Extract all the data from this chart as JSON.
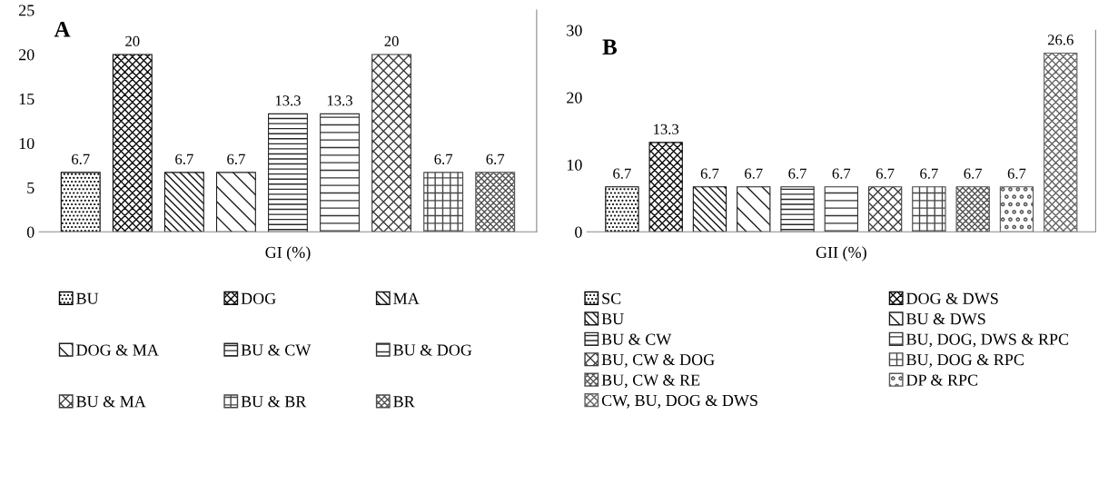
{
  "chart_data": [
    {
      "type": "bar",
      "xlabel": "GI (%)",
      "annotations": [
        "A"
      ],
      "categories": [
        null,
        null,
        null,
        null,
        null,
        null,
        null,
        null,
        null
      ],
      "ylim": [
        0,
        25
      ],
      "yticks": [
        0,
        5,
        10,
        15,
        20,
        25
      ],
      "stacked": true,
      "data_labels": true,
      "legend": "bottom",
      "grid": false,
      "series": [
        {
          "name": "BU",
          "color": "#000000",
          "values": [
            6.7,
            null,
            null,
            null,
            null,
            null,
            null,
            null,
            null
          ]
        },
        {
          "name": "DOG",
          "color": "#0a0a0a",
          "values": [
            null,
            20,
            null,
            null,
            null,
            null,
            null,
            null,
            null
          ]
        },
        {
          "name": "MA",
          "color": "#141414",
          "values": [
            null,
            null,
            6.7,
            null,
            null,
            null,
            null,
            null,
            null
          ]
        },
        {
          "name": "DOG & MA",
          "color": "#1e1e1e",
          "values": [
            null,
            null,
            null,
            6.7,
            null,
            null,
            null,
            null,
            null
          ]
        },
        {
          "name": "BU & CW",
          "color": "#282828",
          "values": [
            null,
            null,
            null,
            null,
            13.3,
            null,
            null,
            null,
            null
          ]
        },
        {
          "name": "BU & DOG",
          "color": "#323232",
          "values": [
            null,
            null,
            null,
            null,
            null,
            13.3,
            null,
            null,
            null
          ]
        },
        {
          "name": "BU & MA",
          "color": "#3c3c3c",
          "values": [
            null,
            null,
            null,
            null,
            null,
            null,
            20,
            null,
            null
          ]
        },
        {
          "name": "BU & BR",
          "color": "#464646",
          "values": [
            null,
            null,
            null,
            null,
            null,
            null,
            null,
            6.7,
            null
          ]
        },
        {
          "name": "BR",
          "color": "#505050",
          "values": [
            null,
            null,
            null,
            null,
            null,
            null,
            null,
            null,
            6.7
          ]
        }
      ]
    },
    {
      "type": "bar",
      "xlabel": "GII (%)",
      "annotations": [
        "B"
      ],
      "categories": [
        null,
        null,
        null,
        null,
        null,
        null,
        null,
        null,
        null,
        null,
        null
      ],
      "ylim": [
        0,
        30
      ],
      "yticks": [
        0,
        10,
        20,
        30
      ],
      "stacked": true,
      "data_labels": true,
      "legend": "bottom",
      "grid": false,
      "series": [
        {
          "name": "SC",
          "color": "#000000",
          "values": [
            6.7,
            null,
            null,
            null,
            null,
            null,
            null,
            null,
            null,
            null,
            null
          ]
        },
        {
          "name": "DOG & DWS",
          "color": "#0a0a0a",
          "values": [
            null,
            13.3,
            null,
            null,
            null,
            null,
            null,
            null,
            null,
            null,
            null
          ]
        },
        {
          "name": "BU",
          "color": "#141414",
          "values": [
            null,
            null,
            6.7,
            null,
            null,
            null,
            null,
            null,
            null,
            null,
            null
          ]
        },
        {
          "name": "BU & DWS",
          "color": "#1e1e1e",
          "values": [
            null,
            null,
            null,
            6.7,
            null,
            null,
            null,
            null,
            null,
            null,
            null
          ]
        },
        {
          "name": "BU & CW",
          "color": "#282828",
          "values": [
            null,
            null,
            null,
            null,
            6.7,
            null,
            null,
            null,
            null,
            null,
            null
          ]
        },
        {
          "name": "BU, DOG, DWS & RPC",
          "color": "#323232",
          "values": [
            null,
            null,
            null,
            null,
            null,
            6.7,
            null,
            null,
            null,
            null,
            null
          ]
        },
        {
          "name": "BU, CW & DOG",
          "color": "#3c3c3c",
          "values": [
            null,
            null,
            null,
            null,
            null,
            null,
            6.7,
            null,
            null,
            null,
            null
          ]
        },
        {
          "name": "BU, DOG & RPC",
          "color": "#464646",
          "values": [
            null,
            null,
            null,
            null,
            null,
            null,
            null,
            6.7,
            null,
            null,
            null
          ]
        },
        {
          "name": "BU, CW & RE",
          "color": "#505050",
          "values": [
            null,
            null,
            null,
            null,
            null,
            null,
            null,
            null,
            6.7,
            null,
            null
          ]
        },
        {
          "name": "DP & RPC",
          "color": "#5a5a5a",
          "values": [
            null,
            null,
            null,
            null,
            null,
            null,
            null,
            null,
            null,
            6.7,
            null
          ]
        },
        {
          "name": "CW, BU, DOG & DWS",
          "color": "#646464",
          "values": [
            null,
            null,
            null,
            null,
            null,
            null,
            null,
            null,
            null,
            null,
            26.6
          ]
        }
      ]
    }
  ]
}
